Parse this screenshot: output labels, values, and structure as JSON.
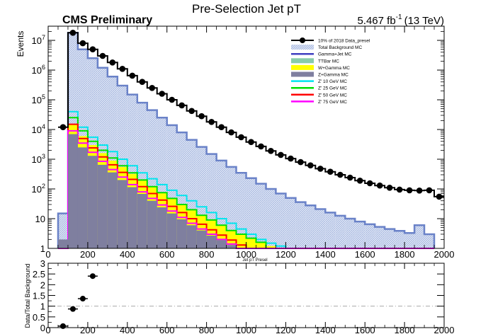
{
  "header": {
    "title": "Pre-Selection Jet pT",
    "experiment": "CMS Preliminary",
    "luminosity": "5.467 fb",
    "lumi_exponent": "-1",
    "energy": "(13 TeV)"
  },
  "chart_data": [
    {
      "type": "histogram",
      "title": "Pre-Selection Jet pT",
      "xlabel": "Jet pT Presel",
      "ylabel": "Events",
      "xlim": [
        0,
        2000
      ],
      "ylim": [
        1,
        30000000
      ],
      "yscale": "log",
      "bin_width": 50,
      "bin_start": 50,
      "x_ticks": [
        0,
        200,
        400,
        600,
        800,
        1000,
        1200,
        1400,
        1600,
        1800,
        2000
      ],
      "x_tick_labels": [
        "0",
        "200",
        "400",
        "600",
        "800",
        "1000",
        "1200",
        "1400",
        "1600",
        "1800",
        "2000"
      ],
      "y_ticks": [
        1,
        10,
        100,
        1000,
        10000,
        100000,
        1000000,
        10000000
      ],
      "y_tick_labels": [
        {
          "base": "1",
          "exp": ""
        },
        {
          "base": "10",
          "exp": ""
        },
        {
          "base": "10",
          "exp": "2"
        },
        {
          "base": "10",
          "exp": "3"
        },
        {
          "base": "10",
          "exp": "4"
        },
        {
          "base": "10",
          "exp": "5"
        },
        {
          "base": "10",
          "exp": "6"
        },
        {
          "base": "10",
          "exp": "7"
        }
      ],
      "legend_position": "top-right",
      "legend": [
        {
          "label": "10% of 2018 Data_presel",
          "style": "marker",
          "color": "#000000"
        },
        {
          "label": "Total Background MC",
          "style": "hatch-fill",
          "color": "#b8c8e6"
        },
        {
          "label": "Gamma+Jet MC",
          "style": "line",
          "color": "#4040c0"
        },
        {
          "label": "TTBar MC",
          "style": "fill",
          "color": "#88ccaa"
        },
        {
          "label": "W+Gamma MC",
          "style": "fill",
          "color": "#ffff00"
        },
        {
          "label": "Z+Gamma MC",
          "style": "fill",
          "color": "#7f7f9f"
        },
        {
          "label": "Z' 10 GeV MC",
          "style": "line",
          "color": "#00e5ee"
        },
        {
          "label": "Z' 25 GeV MC",
          "style": "line",
          "color": "#00e000"
        },
        {
          "label": "Z' 50 GeV MC",
          "style": "line",
          "color": "#ff0000"
        },
        {
          "label": "Z' 75 GeV MC",
          "style": "line",
          "color": "#ff00ff"
        }
      ],
      "series": [
        {
          "name": "Total Background MC",
          "kind": "total",
          "color": "#6a82c8",
          "fill": "#c8d4ee",
          "values": [
            15,
            18000000,
            5000000,
            2500000,
            1200000,
            600000,
            300000,
            150000,
            80000,
            45000,
            25000,
            14000,
            8000,
            4500,
            2600,
            1500,
            900,
            550,
            350,
            230,
            150,
            100,
            70,
            50,
            36,
            28,
            21,
            16,
            12.5,
            10,
            8,
            6.5,
            5.3,
            4.5,
            3.9,
            3.3,
            6,
            3
          ]
        },
        {
          "name": "Z' 10 GeV MC",
          "kind": "signal",
          "color": "#00e5ee",
          "values": [
            0,
            40000,
            12000,
            5500,
            3000,
            1800,
            1000,
            600,
            350,
            220,
            140,
            90,
            60,
            40,
            25,
            16,
            10,
            7,
            4.5,
            3,
            2,
            1.5,
            1.2,
            0,
            0,
            0,
            0,
            0,
            0,
            0,
            0,
            0,
            0,
            0,
            0,
            0,
            0,
            0
          ]
        },
        {
          "name": "W+Gamma MC",
          "kind": "stack",
          "color": "#ffff00",
          "values": [
            0,
            15000,
            6000,
            3000,
            1600,
            900,
            550,
            320,
            190,
            120,
            75,
            48,
            30,
            20,
            13,
            9,
            6,
            4,
            3,
            2.2,
            1.6,
            1.2,
            0,
            0,
            0,
            0,
            0,
            0,
            0,
            0,
            0,
            0,
            0,
            0,
            0,
            0,
            0,
            0
          ]
        },
        {
          "name": "Z' 25 GeV MC",
          "kind": "signal",
          "color": "#00e000",
          "values": [
            0,
            25000,
            9000,
            4000,
            2000,
            1100,
            600,
            350,
            200,
            120,
            75,
            48,
            30,
            20,
            13,
            9,
            6,
            4,
            3,
            2.2,
            1.6,
            0,
            0,
            0,
            0,
            0,
            0,
            0,
            0,
            0,
            0,
            0,
            0,
            0,
            0,
            0,
            0,
            0
          ]
        },
        {
          "name": "Z' 50 GeV MC",
          "kind": "signal",
          "color": "#ff0000",
          "values": [
            0,
            15000,
            5000,
            2400,
            1200,
            650,
            360,
            210,
            120,
            70,
            42,
            26,
            16,
            10,
            6.5,
            4.2,
            2.8,
            1.9,
            1.3,
            0,
            0,
            0,
            0,
            0,
            0,
            0,
            0,
            0,
            0,
            0,
            0,
            0,
            0,
            0,
            0,
            0,
            0,
            0
          ]
        },
        {
          "name": "Z' 75 GeV MC",
          "kind": "signal",
          "color": "#ff00ff",
          "values": [
            1,
            9000,
            3500,
            1700,
            850,
            450,
            250,
            140,
            80,
            48,
            29,
            18,
            11,
            7,
            4.5,
            3,
            2,
            1.4,
            0,
            0,
            0,
            0,
            0,
            0,
            0,
            0,
            0,
            0,
            0,
            0,
            0,
            0,
            0,
            0,
            0,
            0,
            0,
            0
          ]
        },
        {
          "name": "Z+Gamma MC",
          "kind": "stack",
          "color": "#7f7f9f",
          "values": [
            2,
            7000,
            2500,
            1300,
            650,
            360,
            200,
            115,
            68,
            40,
            24,
            15,
            9.5,
            6,
            4,
            2.7,
            1.9,
            1.3,
            0,
            0,
            0,
            0,
            0,
            0,
            0,
            0,
            0,
            0,
            0,
            0,
            0,
            0,
            0,
            0,
            0,
            0,
            0,
            0
          ]
        }
      ],
      "data_points": {
        "name": "10% of 2018 Data_presel",
        "x": [
          75,
          125,
          175,
          225,
          275,
          325,
          375,
          425,
          475,
          525,
          575,
          625,
          675,
          725,
          775,
          825,
          875,
          925,
          975,
          1025,
          1075,
          1125,
          1175,
          1225,
          1275,
          1325,
          1375,
          1425,
          1475,
          1525,
          1575,
          1625,
          1675,
          1725,
          1775,
          1825,
          1875,
          1925,
          1975
        ],
        "y": [
          12000,
          18000000,
          8000000,
          5000000,
          3000000,
          1800000,
          1100000,
          650000,
          400000,
          250000,
          160000,
          100000,
          65000,
          42000,
          28000,
          18000,
          12000,
          8000,
          5500,
          3800,
          2700,
          1900,
          1400,
          1050,
          800,
          620,
          480,
          380,
          300,
          240,
          190,
          155,
          130,
          110,
          95,
          90,
          88,
          90,
          55
        ]
      }
    },
    {
      "type": "scatter",
      "ylabel": "Data/Total Background",
      "xlim": [
        0,
        2000
      ],
      "ylim": [
        0,
        3
      ],
      "x_ticks": [
        0,
        200,
        400,
        600,
        800,
        1000,
        1200,
        1400,
        1600,
        1800,
        2000
      ],
      "x_tick_labels": [
        "0",
        "200",
        "400",
        "600",
        "800",
        "1000",
        "1200",
        "1400",
        "1600",
        "1800",
        "2000"
      ],
      "y_ticks": [
        0,
        0.5,
        1,
        1.5,
        2,
        2.5,
        3
      ],
      "y_tick_labels": [
        "0",
        "0.5",
        "1",
        "1.5",
        "2",
        "2.5",
        "3"
      ],
      "reference_line": 1,
      "points": {
        "x": [
          75,
          125,
          175,
          225
        ],
        "y": [
          0.07,
          0.87,
          1.35,
          2.4
        ]
      }
    }
  ]
}
